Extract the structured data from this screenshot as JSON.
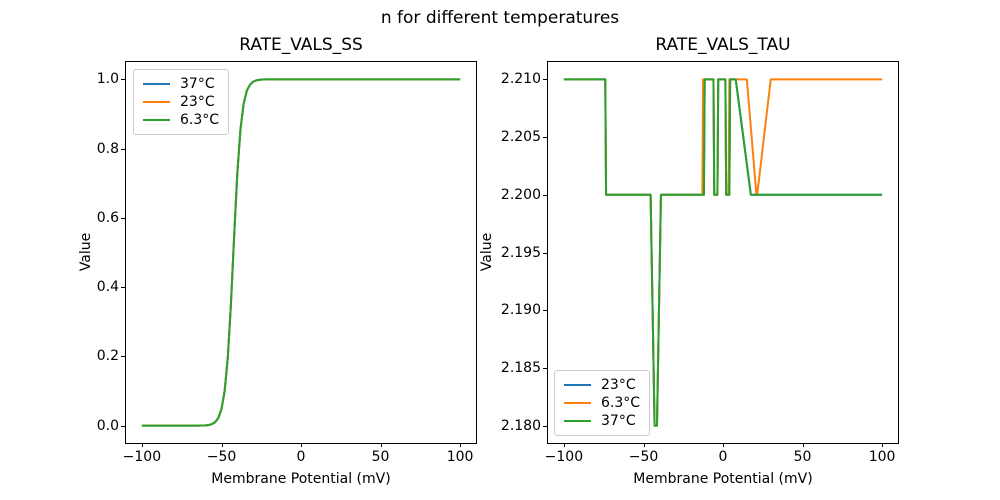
{
  "figure": {
    "suptitle": "n for different temperatures",
    "background": "#ffffff"
  },
  "colors": {
    "blue": "#1f77b4",
    "orange": "#ff7f0e",
    "green": "#2ca02c"
  },
  "chart_data": [
    {
      "id": "left",
      "type": "line",
      "title": "RATE_VALS_SS",
      "xlabel": "Membrane Potential (mV)",
      "ylabel": "Value",
      "xlim": [
        -110,
        110
      ],
      "ylim": [
        -0.05,
        1.05
      ],
      "grid": false,
      "xticks": [
        {
          "v": -100,
          "label": "−100"
        },
        {
          "v": -50,
          "label": "−50"
        },
        {
          "v": 0,
          "label": "0"
        },
        {
          "v": 50,
          "label": "50"
        },
        {
          "v": 100,
          "label": "100"
        }
      ],
      "yticks": [
        {
          "v": 0.0,
          "label": "0.0"
        },
        {
          "v": 0.2,
          "label": "0.2"
        },
        {
          "v": 0.4,
          "label": "0.4"
        },
        {
          "v": 0.6,
          "label": "0.6"
        },
        {
          "v": 0.8,
          "label": "0.8"
        },
        {
          "v": 1.0,
          "label": "1.0"
        }
      ],
      "legend": {
        "loc": "upper left",
        "entries": [
          {
            "label": "37°C",
            "color": "#1f77b4"
          },
          {
            "label": "23°C",
            "color": "#ff7f0e"
          },
          {
            "label": "6.3°C",
            "color": "#2ca02c"
          }
        ]
      },
      "x": [
        -100,
        -90,
        -80,
        -70,
        -65,
        -60,
        -58,
        -56,
        -54,
        -52,
        -50,
        -48,
        -46,
        -44,
        -42,
        -40,
        -38,
        -36,
        -34,
        -32,
        -30,
        -28,
        -26,
        -24,
        -22,
        -20,
        -15,
        -10,
        0,
        20,
        40,
        60,
        80,
        100
      ],
      "y_shared": [
        0,
        0,
        0,
        0,
        0.0001,
        0.0009,
        0.002,
        0.0045,
        0.0099,
        0.0219,
        0.0474,
        0.0998,
        0.1978,
        0.3543,
        0.5498,
        0.7311,
        0.8581,
        0.9309,
        0.9677,
        0.9852,
        0.9933,
        0.997,
        0.9986,
        0.9994,
        0.9997,
        0.9999,
        1,
        1,
        1,
        1,
        1,
        1,
        1,
        1
      ],
      "series": [
        {
          "name": "37°C",
          "color": "#1f77b4"
        },
        {
          "name": "23°C",
          "color": "#ff7f0e"
        },
        {
          "name": "6.3°C",
          "color": "#2ca02c"
        }
      ]
    },
    {
      "id": "right",
      "type": "line",
      "title": "RATE_VALS_TAU",
      "xlabel": "Membrane Potential (mV)",
      "ylabel": "Value",
      "xlim": [
        -110,
        110
      ],
      "ylim": [
        2.1785,
        2.2115
      ],
      "grid": false,
      "xticks": [
        {
          "v": -100,
          "label": "−100"
        },
        {
          "v": -50,
          "label": "−50"
        },
        {
          "v": 0,
          "label": "0"
        },
        {
          "v": 50,
          "label": "50"
        },
        {
          "v": 100,
          "label": "100"
        }
      ],
      "yticks": [
        {
          "v": 2.18,
          "label": "2.180"
        },
        {
          "v": 2.185,
          "label": "2.185"
        },
        {
          "v": 2.19,
          "label": "2.190"
        },
        {
          "v": 2.195,
          "label": "2.195"
        },
        {
          "v": 2.2,
          "label": "2.200"
        },
        {
          "v": 2.205,
          "label": "2.205"
        },
        {
          "v": 2.21,
          "label": "2.210"
        }
      ],
      "legend": {
        "loc": "lower left",
        "entries": [
          {
            "label": "23°C",
            "color": "#1f77b4"
          },
          {
            "label": "6.3°C",
            "color": "#ff7f0e"
          },
          {
            "label": "37°C",
            "color": "#2ca02c"
          }
        ]
      },
      "series": [
        {
          "name": "23°C",
          "color": "#1f77b4",
          "x": [
            -100,
            -74,
            -73.5,
            -45.5,
            -43,
            -41.5,
            -39,
            -12,
            -11.5,
            -6,
            -5.5,
            -3.5,
            -3,
            1.5,
            2,
            4,
            4.5,
            8,
            17.5,
            100
          ],
          "y": [
            2.21,
            2.21,
            2.2,
            2.2,
            2.18,
            2.18,
            2.2,
            2.2,
            2.21,
            2.21,
            2.2,
            2.2,
            2.21,
            2.21,
            2.2,
            2.2,
            2.21,
            2.21,
            2.2,
            2.2
          ]
        },
        {
          "name": "6.3°C",
          "color": "#ff7f0e",
          "x": [
            -100,
            -74,
            -73.5,
            -45.5,
            -43,
            -41.5,
            -39,
            -13,
            -12.5,
            -6,
            -5.5,
            -3.5,
            -3,
            1.5,
            2,
            3.5,
            4,
            15,
            21,
            21.5,
            30,
            100
          ],
          "y": [
            2.21,
            2.21,
            2.2,
            2.2,
            2.18,
            2.18,
            2.2,
            2.2,
            2.21,
            2.21,
            2.2,
            2.2,
            2.21,
            2.21,
            2.2,
            2.2,
            2.21,
            2.21,
            2.2,
            2.2,
            2.21,
            2.21
          ]
        },
        {
          "name": "37°C",
          "color": "#2ca02c",
          "x": [
            -100,
            -74,
            -73.5,
            -45.5,
            -43,
            -41.5,
            -39,
            -12,
            -11.5,
            -6,
            -5.5,
            -3.5,
            -3,
            1.5,
            2,
            4,
            4.5,
            8,
            17.5,
            100
          ],
          "y": [
            2.21,
            2.21,
            2.2,
            2.2,
            2.18,
            2.18,
            2.2,
            2.2,
            2.21,
            2.21,
            2.2,
            2.2,
            2.21,
            2.21,
            2.2,
            2.2,
            2.21,
            2.21,
            2.2,
            2.2
          ]
        }
      ]
    }
  ]
}
